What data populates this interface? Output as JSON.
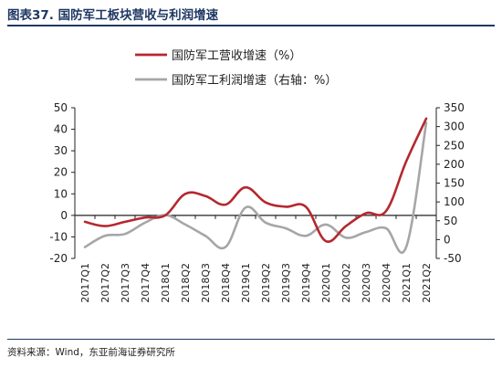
{
  "figure": {
    "title": "图表37. 国防军工板块营收与利润增速",
    "source": "资料来源：Wind，东亚前海证券研究所"
  },
  "colors": {
    "title": "#1f3864",
    "revenue": "#b5282f",
    "profit": "#a6a6a6",
    "axis": "#222222"
  },
  "chart_data": {
    "type": "line",
    "categories": [
      "2017Q1",
      "2017Q2",
      "2017Q3",
      "2017Q4",
      "2018Q1",
      "2018Q2",
      "2018Q3",
      "2018Q4",
      "2019Q1",
      "2019Q2",
      "2019Q3",
      "2019Q4",
      "2020Q1",
      "2020Q2",
      "2020Q3",
      "2020Q4",
      "2021Q1",
      "2021Q2"
    ],
    "series": [
      {
        "name": "国防军工营收增速（%）",
        "axis": "left",
        "values": [
          -3,
          -5,
          -3,
          -1,
          0,
          10,
          9,
          5,
          13,
          6,
          4,
          4,
          -12,
          -5,
          1,
          2,
          25,
          45
        ]
      },
      {
        "name": "国防军工利润增速（右轴：%）",
        "axis": "right",
        "values": [
          -20,
          10,
          15,
          45,
          65,
          40,
          10,
          -20,
          85,
          45,
          30,
          10,
          40,
          5,
          20,
          30,
          -20,
          310
        ]
      }
    ],
    "y_left": {
      "min": -20,
      "max": 50,
      "step": 10,
      "ticks": [
        "-20",
        "-10",
        "0",
        "10",
        "20",
        "30",
        "40",
        "50"
      ]
    },
    "y_right": {
      "min": -50,
      "max": 350,
      "step": 50,
      "ticks": [
        "-50",
        "0",
        "50",
        "100",
        "150",
        "200",
        "250",
        "300",
        "350"
      ]
    },
    "legend_position": "top-center",
    "grid": false
  }
}
